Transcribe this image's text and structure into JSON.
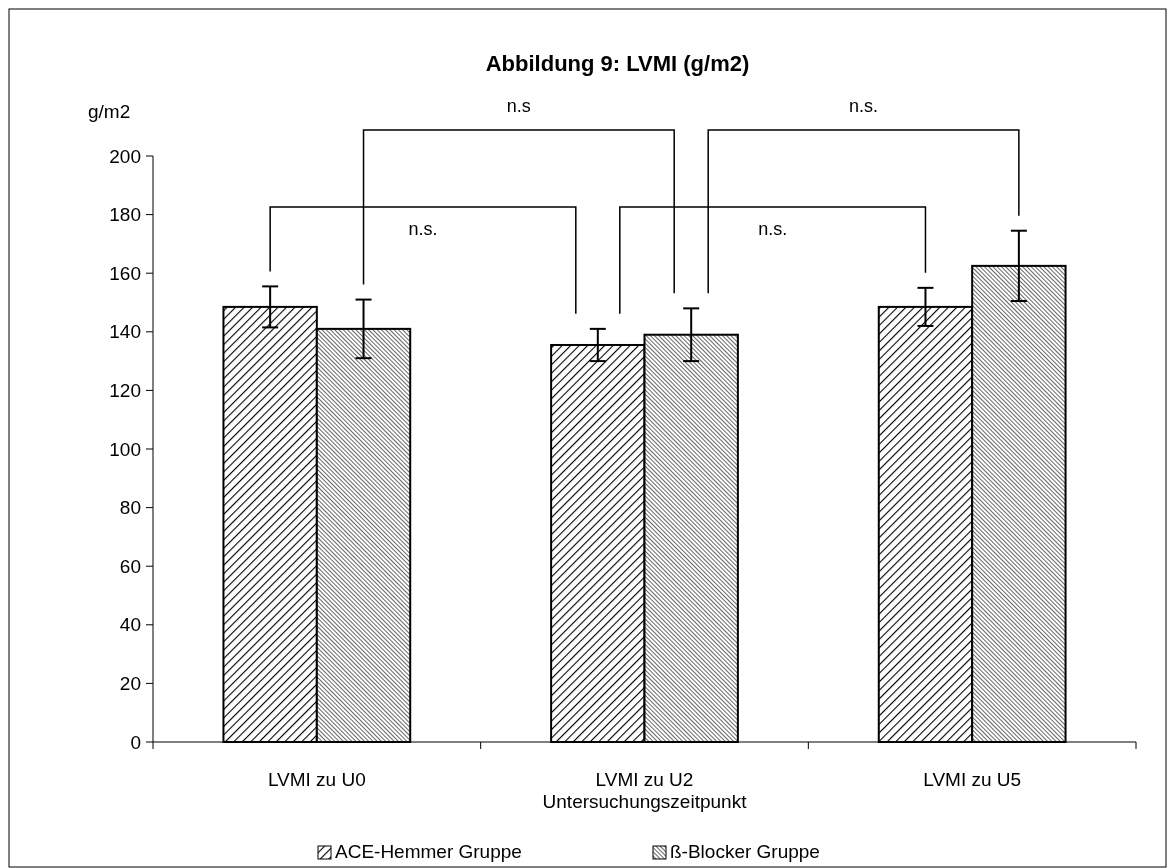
{
  "chart_data": {
    "type": "bar",
    "title": "Abbildung 9: LVMI (g/m2)",
    "ylabel": "g/m2",
    "xlabel": "Untersuchungszeitpunkt",
    "categories": [
      "LVMI zu U0",
      "LVMI zu U2",
      "LVMI zu U5"
    ],
    "series": [
      {
        "name": "ACE-Hemmer Gruppe",
        "color": "#000000",
        "values": [
          148.5,
          135.5,
          148.5
        ],
        "errors": [
          7,
          5.5,
          6.5
        ]
      },
      {
        "name": "ß-Blocker Gruppe",
        "color": "#000000",
        "values": [
          141,
          139,
          162.5
        ],
        "errors": [
          10,
          9,
          12
        ]
      }
    ],
    "ylim": [
      0,
      200
    ],
    "yticks": [
      0,
      20,
      40,
      60,
      80,
      100,
      120,
      140,
      160,
      180,
      200
    ],
    "annotations": [
      "n.s.",
      "n.s",
      "n.s.",
      "n.s."
    ],
    "legend": "bottom",
    "grid": false
  }
}
